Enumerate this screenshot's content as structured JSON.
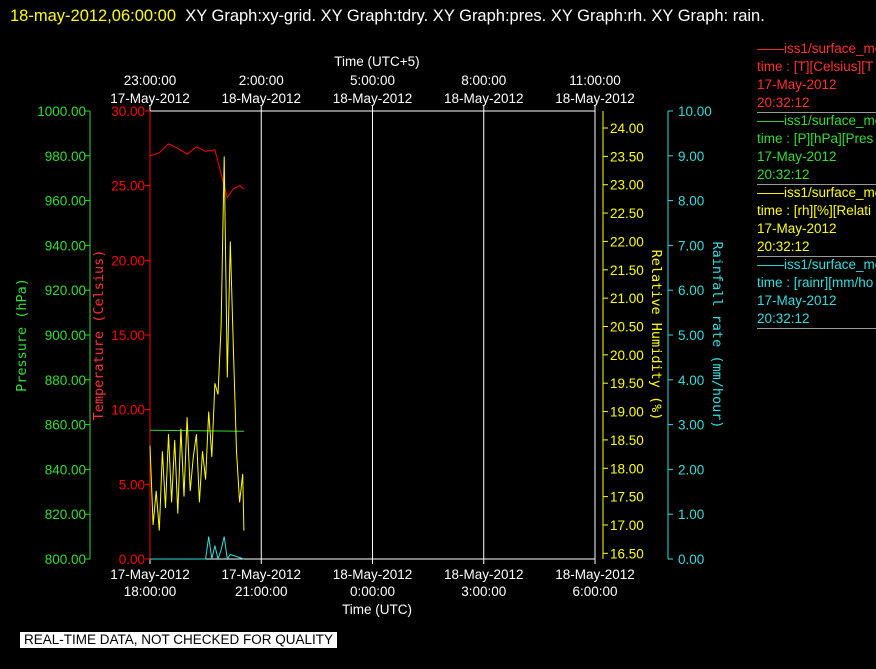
{
  "header": {
    "timestamp": "18-may-2012,06:00:00",
    "graphs": "XY Graph:xy-grid.  XY Graph:tdry.  XY Graph:pres.  XY Graph:rh.  XY Graph: rain."
  },
  "legend": [
    {
      "name": "iss1/surface_me",
      "units": "time : [T][Celsius][T",
      "date": "17-May-2012",
      "time": "20:32:12",
      "color": "#ff3030"
    },
    {
      "name": "iss1/surface_me",
      "units": "time : [P][hPa][Pres",
      "date": "17-May-2012",
      "time": "20:32:12",
      "color": "#33dd33"
    },
    {
      "name": "iss1/surface_me",
      "units": "time : [rh][%][Relati",
      "date": "17-May-2012",
      "time": "20:32:12",
      "color": "#ffff00"
    },
    {
      "name": "iss1/surface_me",
      "units": "time : [rainr][mm/ho",
      "date": "17-May-2012",
      "time": "20:32:12",
      "color": "#33dddd"
    }
  ],
  "footer": {
    "quality_note": "REAL-TIME DATA, NOT CHECKED FOR QUALITY"
  },
  "colors": {
    "temperature": "#ff0000",
    "pressure": "#33dd33",
    "humidity": "#ffff00",
    "rain": "#33dddd",
    "grid": "#ffffff"
  },
  "chart_data": {
    "type": "line",
    "title": "",
    "x_top_label": "Time (UTC+5)",
    "x_bottom_label": "Time (UTC)",
    "xlim": [
      "2012-05-17 18:00:00",
      "2012-05-18 06:00:00"
    ],
    "x_bottom_ticks": [
      {
        "date": "17-May-2012",
        "time": "18:00:00",
        "t": "2012-05-17 18:00:00"
      },
      {
        "date": "17-May-2012",
        "time": "21:00:00",
        "t": "2012-05-17 21:00:00"
      },
      {
        "date": "18-May-2012",
        "time": "0:00:00",
        "t": "2012-05-18 00:00:00"
      },
      {
        "date": "18-May-2012",
        "time": "3:00:00",
        "t": "2012-05-18 03:00:00"
      },
      {
        "date": "18-May-2012",
        "time": "6:00:00",
        "t": "2012-05-18 06:00:00"
      }
    ],
    "x_top_ticks": [
      {
        "time": "23:00:00",
        "date": "17-May-2012",
        "t": "2012-05-17 18:00:00"
      },
      {
        "time": "2:00:00",
        "date": "18-May-2012",
        "t": "2012-05-17 21:00:00"
      },
      {
        "time": "5:00:00",
        "date": "18-May-2012",
        "t": "2012-05-18 00:00:00"
      },
      {
        "time": "8:00:00",
        "date": "18-May-2012",
        "t": "2012-05-18 03:00:00"
      },
      {
        "time": "11:00:00",
        "date": "18-May-2012",
        "t": "2012-05-18 06:00:00"
      }
    ],
    "axes": {
      "pressure": {
        "label": "Pressure (hPa)",
        "ylim": [
          800,
          1000
        ],
        "ticks": [
          "1000.00",
          "980.00",
          "960.00",
          "940.00",
          "920.00",
          "900.00",
          "880.00",
          "860.00",
          "840.00",
          "820.00",
          "800.00"
        ]
      },
      "temperature": {
        "label": "Temperature (Celsius)",
        "ylim": [
          0,
          30
        ],
        "ticks": [
          "30.00",
          "25.00",
          "20.00",
          "15.00",
          "10.00",
          "5.00",
          "0.00"
        ]
      },
      "humidity": {
        "label": "Relative Humidity (%)",
        "ylim": [
          16.4,
          24.3
        ],
        "ticks": [
          "24.00",
          "23.50",
          "23.00",
          "22.50",
          "22.00",
          "21.50",
          "21.00",
          "20.50",
          "20.00",
          "19.50",
          "19.00",
          "18.50",
          "18.00",
          "17.50",
          "17.00",
          "16.50"
        ]
      },
      "rain": {
        "label": "Rainfall rate (mm/hour)",
        "ylim": [
          0,
          10
        ],
        "ticks": [
          "10.00",
          "9.00",
          "8.00",
          "7.00",
          "6.00",
          "5.00",
          "4.00",
          "3.00",
          "2.00",
          "1.00",
          "0.00"
        ]
      }
    },
    "series": [
      {
        "name": "iss1/surface_me",
        "axis": "temperature",
        "x": [
          "2012-05-17 18:00",
          "2012-05-17 18:15",
          "2012-05-17 18:30",
          "2012-05-17 18:45",
          "2012-05-17 19:00",
          "2012-05-17 19:15",
          "2012-05-17 19:30",
          "2012-05-17 19:45",
          "2012-05-17 19:55",
          "2012-05-17 20:05",
          "2012-05-17 20:15",
          "2012-05-17 20:25",
          "2012-05-17 20:32"
        ],
        "y": [
          27.0,
          27.2,
          27.8,
          27.5,
          27.1,
          27.6,
          27.3,
          27.4,
          25.8,
          24.2,
          24.8,
          25.0,
          24.8
        ]
      },
      {
        "name": "iss1/surface_me",
        "axis": "pressure",
        "x": [
          "2012-05-17 18:00",
          "2012-05-17 20:32"
        ],
        "y": [
          857.5,
          857.0
        ]
      },
      {
        "name": "iss1/surface_me",
        "axis": "humidity",
        "x": [
          "2012-05-17 18:00",
          "2012-05-17 18:05",
          "2012-05-17 18:10",
          "2012-05-17 18:15",
          "2012-05-17 18:20",
          "2012-05-17 18:25",
          "2012-05-17 18:30",
          "2012-05-17 18:35",
          "2012-05-17 18:40",
          "2012-05-17 18:45",
          "2012-05-17 18:50",
          "2012-05-17 18:55",
          "2012-05-17 19:00",
          "2012-05-17 19:05",
          "2012-05-17 19:10",
          "2012-05-17 19:15",
          "2012-05-17 19:20",
          "2012-05-17 19:25",
          "2012-05-17 19:30",
          "2012-05-17 19:35",
          "2012-05-17 19:40",
          "2012-05-17 19:45",
          "2012-05-17 19:50",
          "2012-05-17 19:55",
          "2012-05-17 20:00",
          "2012-05-17 20:05",
          "2012-05-17 20:10",
          "2012-05-17 20:15",
          "2012-05-17 20:20",
          "2012-05-17 20:25",
          "2012-05-17 20:30",
          "2012-05-17 20:32"
        ],
        "y": [
          18.4,
          17.0,
          17.6,
          16.9,
          18.3,
          17.3,
          18.6,
          17.4,
          18.5,
          17.2,
          18.7,
          17.5,
          18.9,
          17.6,
          18.2,
          18.6,
          17.4,
          18.3,
          17.8,
          19.0,
          18.2,
          19.5,
          19.3,
          20.5,
          23.5,
          19.6,
          22.0,
          20.1,
          18.3,
          17.4,
          17.9,
          16.9
        ]
      },
      {
        "name": "iss1/surface_me",
        "axis": "rain",
        "x": [
          "2012-05-17 18:00",
          "2012-05-17 19:30",
          "2012-05-17 19:35",
          "2012-05-17 19:40",
          "2012-05-17 19:45",
          "2012-05-17 19:50",
          "2012-05-17 19:55",
          "2012-05-17 20:00",
          "2012-05-17 20:05",
          "2012-05-17 20:10",
          "2012-05-17 20:32"
        ],
        "y": [
          0.0,
          0.0,
          0.5,
          0.0,
          0.3,
          0.0,
          0.2,
          0.5,
          0.0,
          0.1,
          0.0
        ]
      }
    ],
    "grid": true
  }
}
